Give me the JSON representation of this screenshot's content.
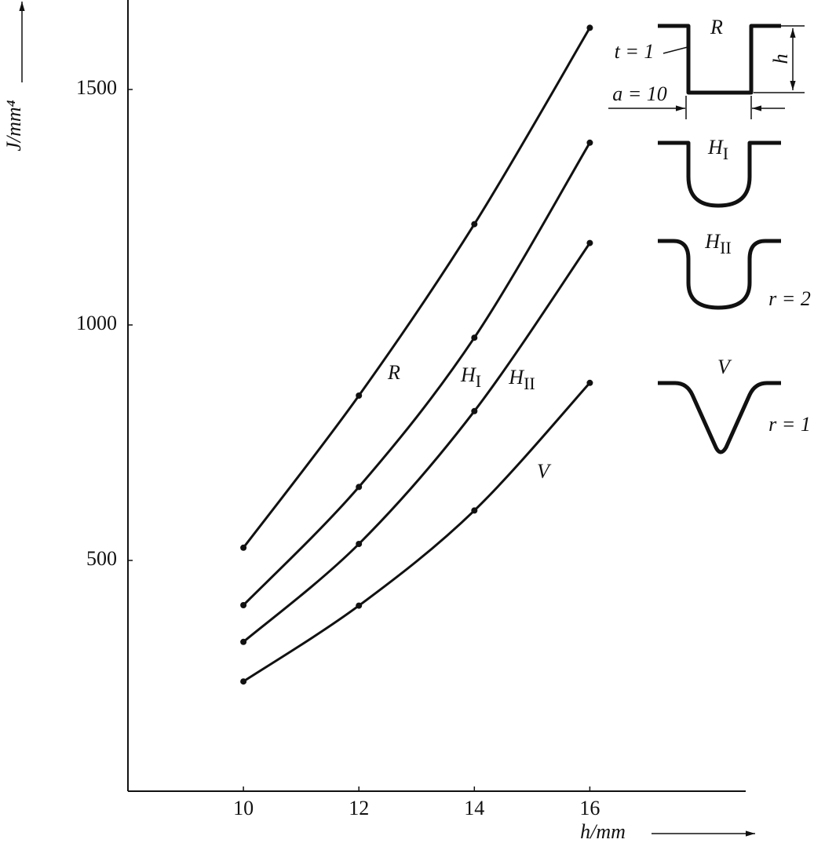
{
  "chart_data": {
    "type": "line",
    "x_label": "h/mm",
    "y_label": "J/mm⁴",
    "x": [
      10,
      12,
      14,
      16
    ],
    "series": [
      {
        "name": "R",
        "color": "#111111",
        "values": [
          527,
          850,
          1214,
          1631
        ]
      },
      {
        "name": "HI",
        "color": "#111111",
        "values": [
          405,
          656,
          973,
          1387
        ]
      },
      {
        "name": "HII",
        "color": "#111111",
        "values": [
          327,
          535,
          817,
          1174
        ]
      },
      {
        "name": "V",
        "color": "#111111",
        "values": [
          243,
          404,
          606,
          877
        ]
      }
    ],
    "xlim": [
      8,
      18.7
    ],
    "ylim": [
      10,
      1690
    ],
    "xticks": [
      10,
      12,
      14,
      16
    ],
    "yticks": [
      500,
      1000,
      1500
    ],
    "annotations": [
      "t = 1",
      "a = 10",
      "h",
      "r = 2",
      "r = 1"
    ]
  }
}
